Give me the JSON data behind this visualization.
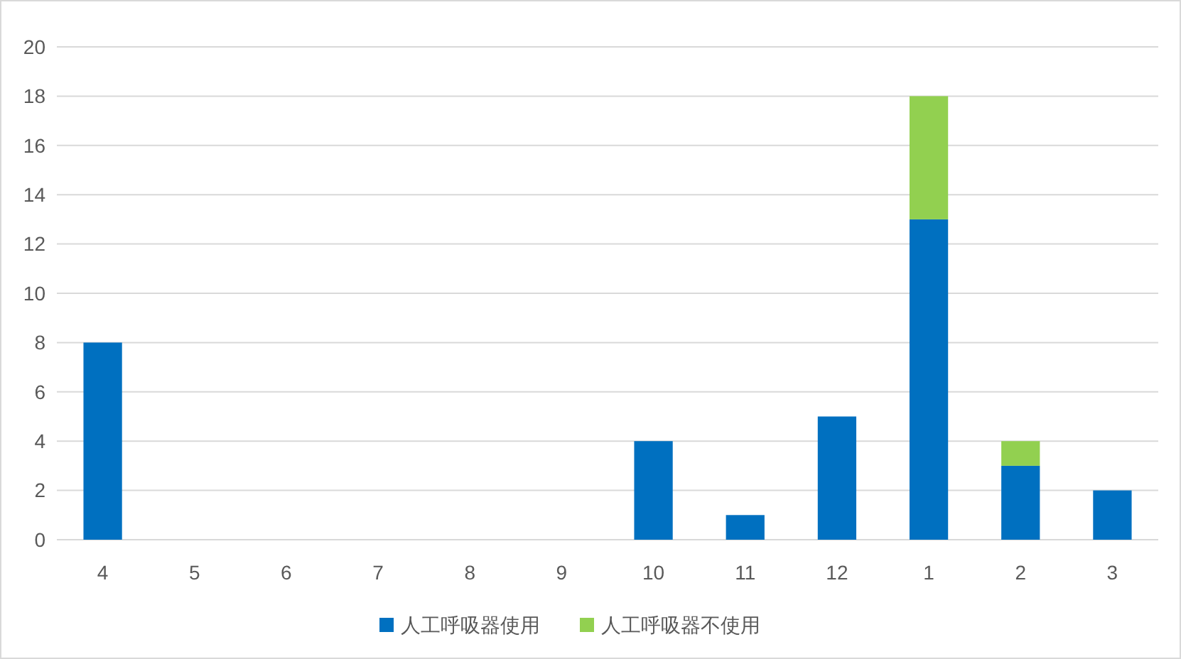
{
  "chart_data": {
    "type": "bar",
    "stacked": true,
    "categories": [
      "4",
      "5",
      "6",
      "7",
      "8",
      "9",
      "10",
      "11",
      "12",
      "1",
      "2",
      "3"
    ],
    "series": [
      {
        "name": "人工呼吸器使用",
        "color": "#0070c0",
        "values": [
          8,
          0,
          0,
          0,
          0,
          0,
          4,
          1,
          5,
          13,
          3,
          2
        ]
      },
      {
        "name": "人工呼吸器不使用",
        "color": "#92d050",
        "values": [
          0,
          0,
          0,
          0,
          0,
          0,
          0,
          0,
          0,
          5,
          1,
          0
        ]
      }
    ],
    "ylim": [
      0,
      20
    ],
    "yticks": [
      0,
      2,
      4,
      6,
      8,
      10,
      12,
      14,
      16,
      18,
      20
    ],
    "grid": "y",
    "legend": "bottom"
  }
}
